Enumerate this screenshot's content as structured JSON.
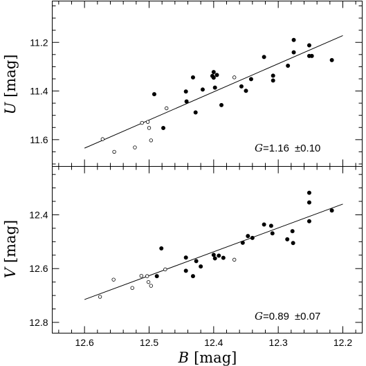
{
  "chart_data": [
    {
      "type": "scatter",
      "panel": "top",
      "ylabel_var": "U",
      "ylabel_unit": "[mag]",
      "xlim": [
        12.65,
        12.17
      ],
      "ylim": [
        11.71,
        11.03
      ],
      "x_ticks": [
        "12.6",
        "12.5",
        "12.4",
        "12.3",
        "12.2"
      ],
      "y_ticks": [
        {
          "value": 11.2,
          "label": "11.2"
        },
        {
          "value": 11.4,
          "label": "11.4"
        },
        {
          "value": 11.6,
          "label": "11.6"
        }
      ],
      "annotation_var": "G",
      "annotation_value": "=1.16",
      "annotation_err": "±0.10",
      "fit_line": [
        [
          12.6,
          11.635
        ],
        [
          12.2,
          11.172
        ]
      ],
      "series": [
        {
          "style": "filled",
          "points": [
            [
              12.492,
              11.413
            ],
            [
              12.478,
              11.552
            ],
            [
              12.443,
              11.402
            ],
            [
              12.442,
              11.443
            ],
            [
              12.432,
              11.344
            ],
            [
              12.428,
              11.488
            ],
            [
              12.417,
              11.394
            ],
            [
              12.402,
              11.338
            ],
            [
              12.4,
              11.322
            ],
            [
              12.4,
              11.345
            ],
            [
              12.398,
              11.386
            ],
            [
              12.395,
              11.334
            ],
            [
              12.388,
              11.458
            ],
            [
              12.357,
              11.381
            ],
            [
              12.35,
              11.399
            ],
            [
              12.342,
              11.351
            ],
            [
              12.322,
              11.26
            ],
            [
              12.308,
              11.337
            ],
            [
              12.308,
              11.357
            ],
            [
              12.285,
              11.296
            ],
            [
              12.276,
              11.19
            ],
            [
              12.276,
              11.241
            ],
            [
              12.252,
              11.212
            ],
            [
              12.252,
              11.256
            ],
            [
              12.248,
              11.256
            ],
            [
              12.217,
              11.273
            ]
          ]
        },
        {
          "style": "open",
          "points": [
            [
              12.572,
              11.598
            ],
            [
              12.554,
              11.65
            ],
            [
              12.522,
              11.632
            ],
            [
              12.511,
              11.531
            ],
            [
              12.502,
              11.527
            ],
            [
              12.5,
              11.552
            ],
            [
              12.497,
              11.603
            ],
            [
              12.473,
              11.471
            ],
            [
              12.368,
              11.344
            ]
          ]
        }
      ]
    },
    {
      "type": "scatter",
      "panel": "bottom",
      "ylabel_var": "V",
      "ylabel_unit": "[mag]",
      "xlabel_var": "B",
      "xlabel_unit": "[mag]",
      "xlim": [
        12.65,
        12.17
      ],
      "ylim": [
        12.84,
        12.22
      ],
      "x_ticks": [
        "12.6",
        "12.5",
        "12.4",
        "12.3",
        "12.2"
      ],
      "y_ticks": [
        {
          "value": 12.4,
          "label": "12.4"
        },
        {
          "value": 12.6,
          "label": "12.6"
        },
        {
          "value": 12.8,
          "label": "12.8"
        }
      ],
      "annotation_var": "G",
      "annotation_value": "=0.89",
      "annotation_err": "±0.07",
      "fit_line": [
        [
          12.6,
          12.715
        ],
        [
          12.2,
          12.36
        ]
      ],
      "series": [
        {
          "style": "filled",
          "points": [
            [
              12.481,
              12.525
            ],
            [
              12.488,
              12.628
            ],
            [
              12.443,
              12.559
            ],
            [
              12.443,
              12.608
            ],
            [
              12.432,
              12.628
            ],
            [
              12.427,
              12.572
            ],
            [
              12.42,
              12.592
            ],
            [
              12.4,
              12.549
            ],
            [
              12.398,
              12.562
            ],
            [
              12.392,
              12.552
            ],
            [
              12.385,
              12.56
            ],
            [
              12.355,
              12.504
            ],
            [
              12.347,
              12.479
            ],
            [
              12.34,
              12.486
            ],
            [
              12.322,
              12.436
            ],
            [
              12.311,
              12.441
            ],
            [
              12.309,
              12.469
            ],
            [
              12.286,
              12.491
            ],
            [
              12.278,
              12.461
            ],
            [
              12.277,
              12.505
            ],
            [
              12.252,
              12.318
            ],
            [
              12.252,
              12.354
            ],
            [
              12.252,
              12.424
            ],
            [
              12.217,
              12.384
            ]
          ]
        },
        {
          "style": "open",
          "points": [
            [
              12.576,
              12.705
            ],
            [
              12.555,
              12.641
            ],
            [
              12.526,
              12.672
            ],
            [
              12.512,
              12.627
            ],
            [
              12.503,
              12.628
            ],
            [
              12.501,
              12.65
            ],
            [
              12.497,
              12.664
            ],
            [
              12.475,
              12.603
            ],
            [
              12.368,
              12.567
            ]
          ]
        }
      ]
    }
  ]
}
